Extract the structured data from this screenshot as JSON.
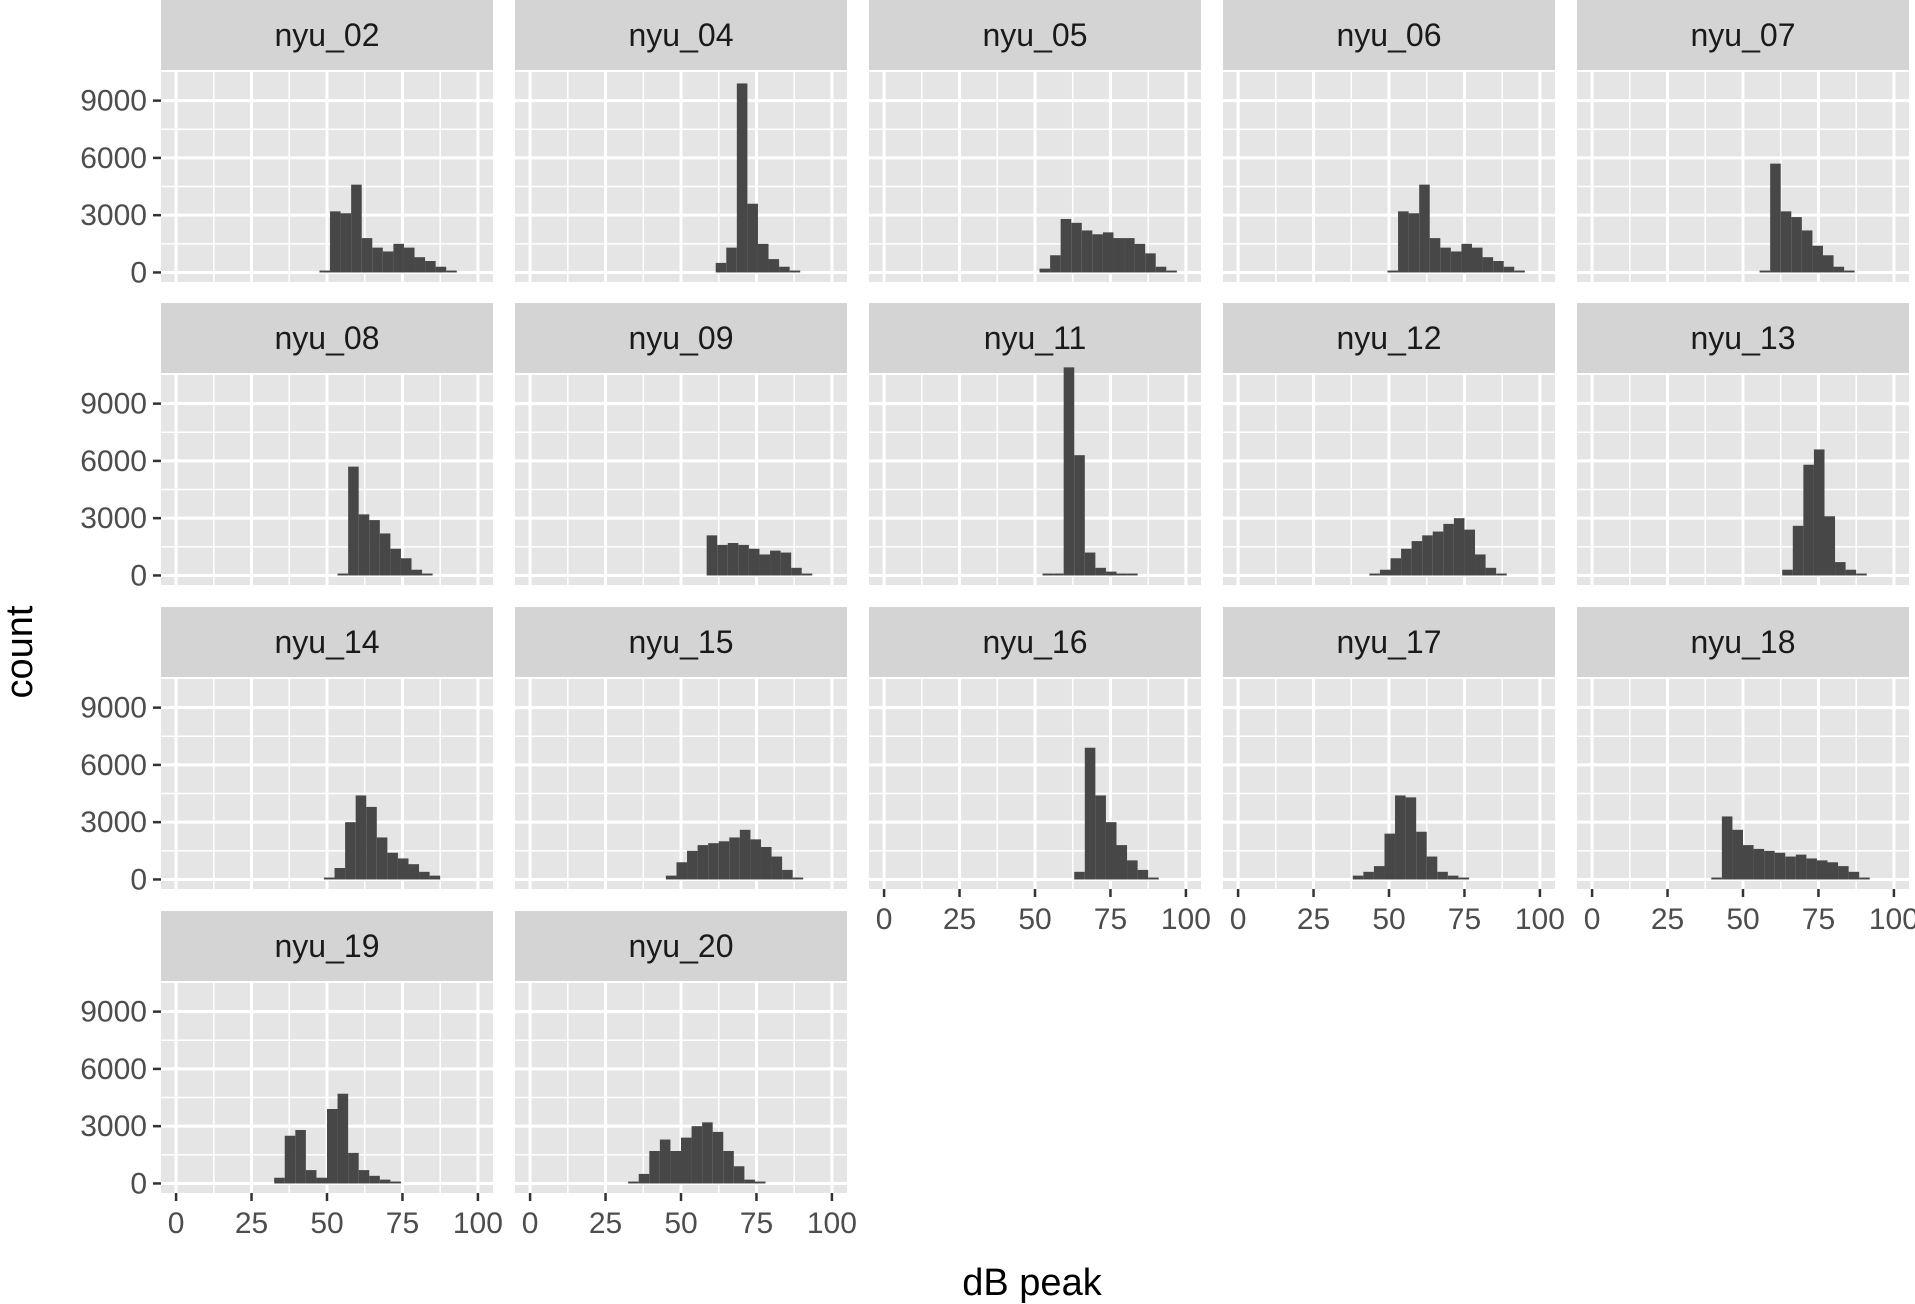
{
  "chart_data": {
    "type": "bar",
    "subtype": "faceted-histogram",
    "xlabel": "dB peak",
    "ylabel": "count",
    "xlim": [
      -5,
      105
    ],
    "ylim": [
      -500,
      10500
    ],
    "x_ticks": [
      0,
      25,
      50,
      75,
      100
    ],
    "y_ticks": [
      0,
      3000,
      6000,
      9000
    ],
    "bin_width": 3.5,
    "bar_color": "#474747",
    "panel_bg": "#e5e5e5",
    "strip_bg": "#d4d4d4",
    "grid": true,
    "facet_cols": 5,
    "panels": [
      {
        "name": "nyu_02",
        "start": 47.5,
        "values": [
          100,
          3200,
          3100,
          4600,
          1800,
          1300,
          1100,
          1500,
          1300,
          800,
          600,
          300,
          100
        ]
      },
      {
        "name": "nyu_04",
        "start": 61.5,
        "values": [
          500,
          1300,
          9900,
          3600,
          1500,
          700,
          300,
          100
        ]
      },
      {
        "name": "nyu_05",
        "start": 51.5,
        "values": [
          200,
          900,
          2800,
          2600,
          2200,
          2000,
          2100,
          1800,
          1800,
          1500,
          1000,
          300,
          100
        ]
      },
      {
        "name": "nyu_06",
        "start": 49.5,
        "values": [
          100,
          3200,
          3100,
          4600,
          1800,
          1300,
          1100,
          1500,
          1300,
          800,
          600,
          300,
          100
        ]
      },
      {
        "name": "nyu_07",
        "start": 55.5,
        "values": [
          100,
          5700,
          3200,
          2900,
          2200,
          1400,
          900,
          300,
          100
        ]
      },
      {
        "name": "nyu_08",
        "start": 53.5,
        "values": [
          100,
          5700,
          3200,
          2900,
          2200,
          1400,
          900,
          300,
          100
        ]
      },
      {
        "name": "nyu_09",
        "start": 58.5,
        "values": [
          2100,
          1600,
          1700,
          1600,
          1400,
          1100,
          1300,
          1200,
          400,
          100
        ]
      },
      {
        "name": "nyu_11",
        "start": 52.5,
        "values": [
          100,
          100,
          10900,
          6300,
          1200,
          400,
          200,
          100,
          100
        ]
      },
      {
        "name": "nyu_12",
        "start": 43.5,
        "values": [
          100,
          300,
          900,
          1400,
          1800,
          2100,
          2300,
          2700,
          3000,
          2400,
          1100,
          400,
          100
        ]
      },
      {
        "name": "nyu_13",
        "start": 63.0,
        "values": [
          300,
          2600,
          5800,
          6600,
          3100,
          700,
          300,
          100
        ]
      },
      {
        "name": "nyu_14",
        "start": 49.0,
        "values": [
          100,
          600,
          3000,
          4400,
          3800,
          2200,
          1400,
          1100,
          800,
          400,
          200
        ]
      },
      {
        "name": "nyu_15",
        "start": 45.0,
        "values": [
          200,
          900,
          1500,
          1800,
          1900,
          2000,
          2200,
          2600,
          2100,
          1700,
          1200,
          500,
          100
        ]
      },
      {
        "name": "nyu_16",
        "start": 63.0,
        "values": [
          400,
          6900,
          4400,
          3000,
          1800,
          1000,
          500,
          100
        ]
      },
      {
        "name": "nyu_17",
        "start": 38.0,
        "values": [
          200,
          400,
          700,
          2400,
          4400,
          4300,
          2500,
          1200,
          400,
          200,
          100
        ]
      },
      {
        "name": "nyu_18",
        "start": 39.5,
        "values": [
          100,
          3300,
          2600,
          1800,
          1600,
          1500,
          1400,
          1200,
          1300,
          1100,
          1000,
          900,
          700,
          400,
          100
        ]
      },
      {
        "name": "nyu_19",
        "start": 32.5,
        "values": [
          300,
          2500,
          2800,
          700,
          300,
          3900,
          4700,
          1600,
          700,
          400,
          200,
          100
        ]
      },
      {
        "name": "nyu_20",
        "start": 32.5,
        "values": [
          100,
          500,
          1700,
          2300,
          1700,
          2400,
          3000,
          3200,
          2700,
          1700,
          900,
          200,
          100
        ]
      }
    ]
  }
}
